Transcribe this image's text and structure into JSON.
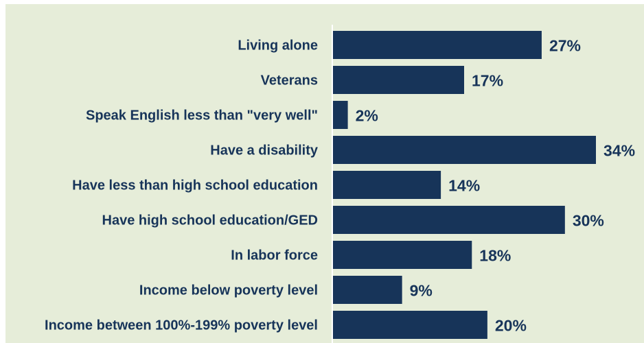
{
  "chart_data": {
    "type": "bar",
    "orientation": "horizontal",
    "categories": [
      "Living alone",
      "Veterans",
      "Speak English less than \"very well\"",
      "Have a disability",
      "Have less than high school education",
      "Have high school education/GED",
      "In labor force",
      "Income below poverty level",
      "Income between 100%-199% poverty level"
    ],
    "values": [
      27,
      17,
      2,
      34,
      14,
      30,
      18,
      9,
      20
    ],
    "value_labels": [
      "27%",
      "17%",
      "2%",
      "34%",
      "14%",
      "30%",
      "18%",
      "9%",
      "20%"
    ],
    "xlim": [
      0,
      34
    ],
    "grid": false,
    "legend": "none"
  },
  "colors": {
    "bar": "#173459",
    "text": "#173459",
    "background": "#e6edd9",
    "axis": "#ffffff"
  }
}
